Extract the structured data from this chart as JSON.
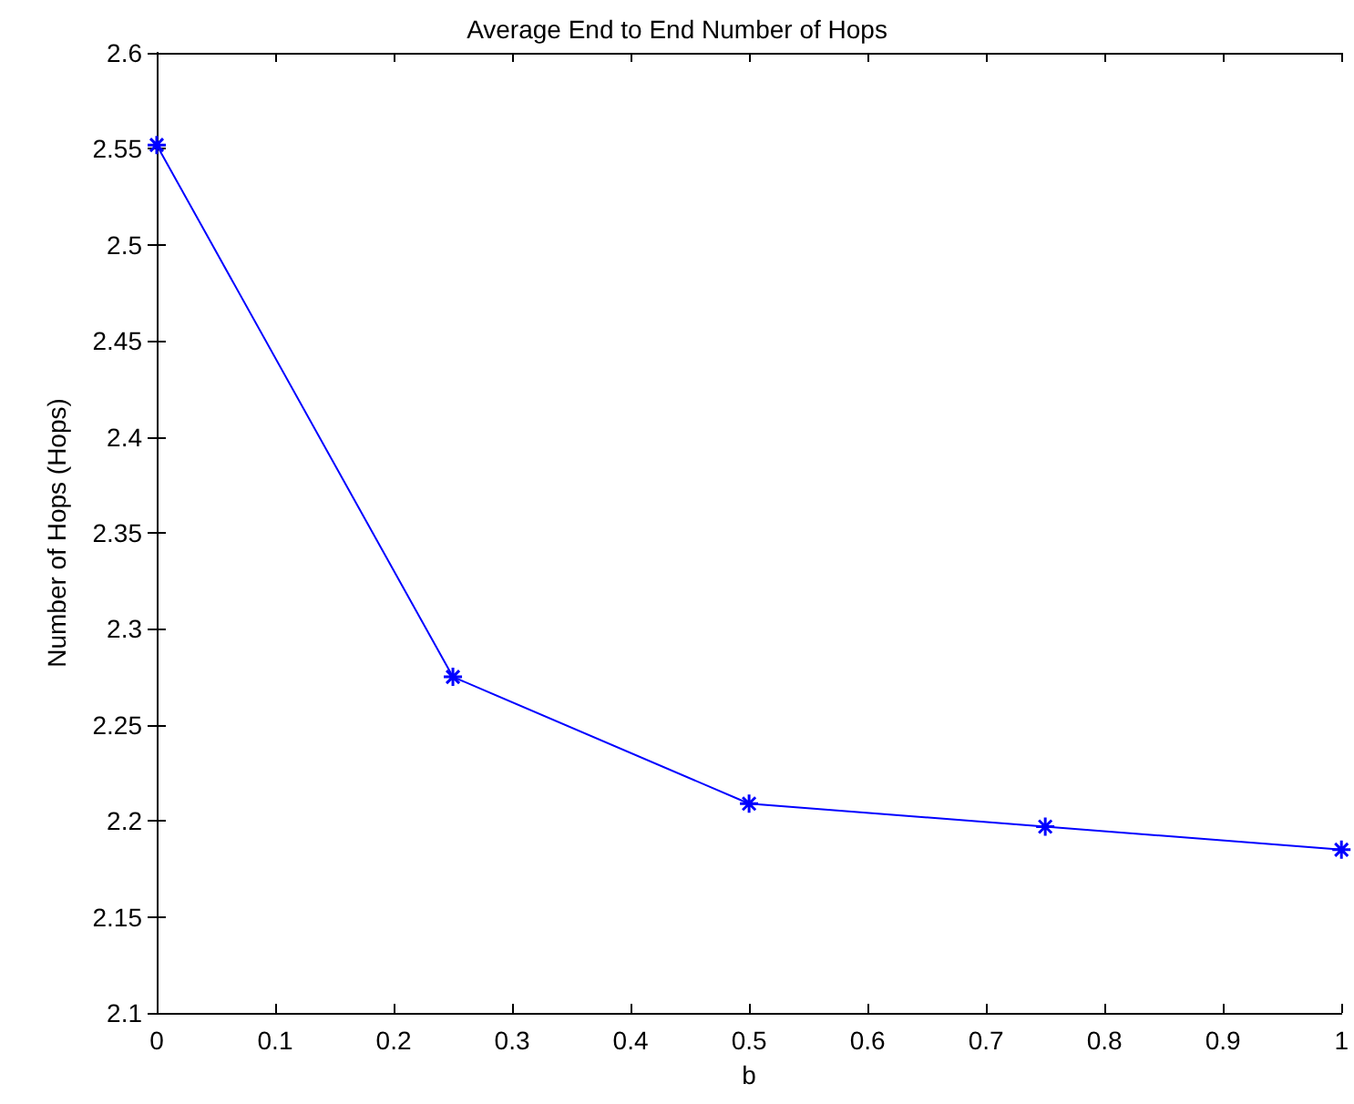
{
  "chart_data": {
    "type": "line",
    "title": "Average End to End Number of Hops",
    "xlabel": "b",
    "ylabel": "Number of Hops (Hops)",
    "x": [
      0,
      0.25,
      0.5,
      0.75,
      1
    ],
    "series": [
      {
        "color": "#0000ff",
        "values": [
          2.552,
          2.275,
          2.209,
          2.197,
          2.185
        ]
      }
    ],
    "xlim": [
      0,
      1
    ],
    "xticks": [
      0,
      0.1,
      0.2,
      0.3,
      0.4,
      0.5,
      0.6,
      0.7,
      0.8,
      0.9,
      1
    ],
    "ylim": [
      2.1,
      2.6
    ],
    "yticks": [
      2.1,
      2.15,
      2.2,
      2.25,
      2.3,
      2.35,
      2.4,
      2.45,
      2.5,
      2.55,
      2.6
    ],
    "grid": false,
    "marker": "cross",
    "line_style": "solid"
  }
}
